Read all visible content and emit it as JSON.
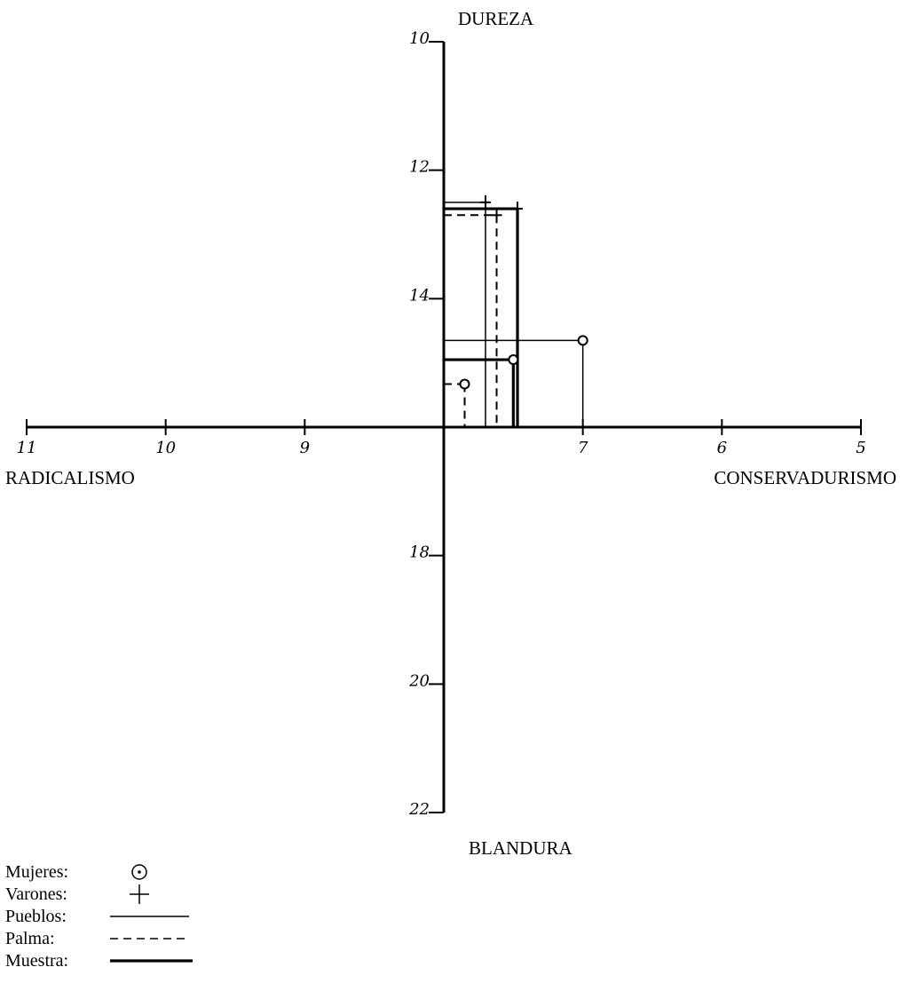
{
  "chart_data": {
    "type": "scatter",
    "axes": {
      "x": {
        "ticks": [
          11,
          10,
          9,
          8,
          7,
          6,
          5
        ],
        "tick_labels": [
          "11",
          "10",
          "9",
          "",
          "7",
          "6",
          "5"
        ],
        "range": [
          11,
          5
        ],
        "left_label": "RADICALISMO",
        "right_label": "CONSERVADURISMO"
      },
      "y": {
        "ticks": [
          10,
          12,
          14,
          16,
          18,
          20,
          22
        ],
        "tick_labels": [
          "10",
          "12",
          "14",
          "",
          "18",
          "20",
          "22"
        ],
        "range": [
          10,
          22
        ],
        "top_label": "DUREZA",
        "bottom_label": "BLANDURA"
      },
      "origin": [
        8,
        16
      ]
    },
    "points": [
      {
        "group": "Pueblos",
        "gender": "Varones",
        "x": 7.7,
        "y": 12.5
      },
      {
        "group": "Palma",
        "gender": "Varones",
        "x": 7.62,
        "y": 12.7
      },
      {
        "group": "Muestra",
        "gender": "Varones",
        "x": 7.47,
        "y": 12.6
      },
      {
        "group": "Pueblos",
        "gender": "Mujeres",
        "x": 7.0,
        "y": 14.65
      },
      {
        "group": "Palma",
        "gender": "Mujeres",
        "x": 7.85,
        "y": 15.33
      },
      {
        "group": "Muestra",
        "gender": "Mujeres",
        "x": 7.5,
        "y": 14.95
      }
    ],
    "legend": {
      "title": "",
      "items": [
        {
          "label": "Mujeres:",
          "symbol": "circle"
        },
        {
          "label": "Varones:",
          "symbol": "cross"
        },
        {
          "label": "Pueblos:",
          "symbol": "thin-line"
        },
        {
          "label": "Palma:",
          "symbol": "dashed-line"
        },
        {
          "label": "Muestra:",
          "symbol": "thick-line"
        }
      ]
    }
  }
}
